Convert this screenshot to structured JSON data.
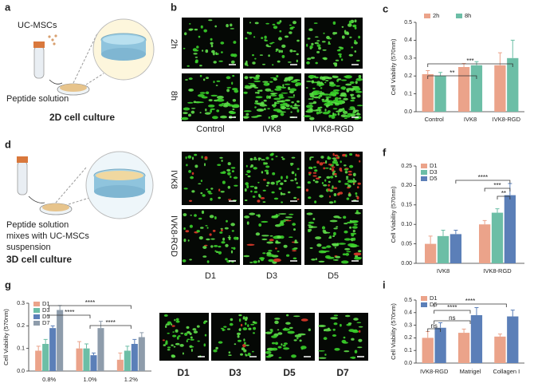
{
  "panel_labels": [
    "a",
    "b",
    "c",
    "d",
    "f",
    "g",
    "i"
  ],
  "panel_a": {
    "cells_label": "UC-MSCs",
    "solution_label": "Peptide solution",
    "title": "2D cell culture"
  },
  "panel_b": {
    "rows": [
      "2h",
      "8h"
    ],
    "columns": [
      "Control",
      "IVK8",
      "IVK8-RGD"
    ]
  },
  "panel_d": {
    "caption_lines": [
      "Peptide solution",
      "mixes with UC-MSCs",
      "suspension"
    ],
    "title": "3D cell culture"
  },
  "images_3d": {
    "rows": [
      "IVK8",
      "IVK8-RGD"
    ],
    "columns": [
      "D1",
      "D3",
      "D5"
    ]
  },
  "images_time": {
    "columns": [
      "D1",
      "D3",
      "D5",
      "D7"
    ]
  },
  "chart_data": [
    {
      "type": "bar",
      "y_label": "Cell Viability (570nm)",
      "categories": [
        "Control",
        "IVK8",
        "IVK8-RGD"
      ],
      "series": [
        {
          "name": "2h",
          "color": "#eba38a",
          "values": [
            0.21,
            0.25,
            0.26
          ],
          "errors": [
            0.02,
            0.02,
            0.07
          ]
        },
        {
          "name": "8h",
          "color": "#6cbea6",
          "values": [
            0.2,
            0.26,
            0.3
          ],
          "errors": [
            0.02,
            0.02,
            0.1
          ]
        }
      ],
      "ylim": [
        0,
        0.5
      ],
      "yticks": [
        {
          "value": 0,
          "label": "0.0"
        },
        0.1,
        0.2,
        0.3,
        0.4,
        0.5
      ],
      "legend": "top",
      "annotations": [
        "***",
        "**"
      ]
    },
    {
      "type": "bar",
      "y_label": "Cell Viability (570nm)",
      "categories": [
        "IVK8",
        "IVK8-RGD"
      ],
      "series": [
        {
          "name": "D1",
          "color": "#eba38a",
          "values": [
            0.05,
            0.1
          ],
          "errors": [
            0.02,
            0.01
          ]
        },
        {
          "name": "D3",
          "color": "#6cbea6",
          "values": [
            0.07,
            0.13
          ],
          "errors": [
            0.015,
            0.01
          ]
        },
        {
          "name": "D5",
          "color": "#5b7fb8",
          "values": [
            0.075,
            0.175
          ],
          "errors": [
            0.01,
            0.03
          ]
        }
      ],
      "ylim": [
        0,
        0.25
      ],
      "yticks": [
        {
          "value": 0,
          "label": "0.00"
        },
        0.05,
        {
          "value": 0.1,
          "label": "0.10"
        },
        0.15,
        {
          "value": 0.2,
          "label": "0.20"
        },
        0.25
      ],
      "legend": "top-left",
      "annotations": [
        "****",
        "***",
        "**"
      ]
    },
    {
      "type": "bar",
      "y_label": "Cell Viability (570nm)",
      "categories": [
        "0.8%",
        "1.0%",
        "1.2%"
      ],
      "series": [
        {
          "name": "D1",
          "color": "#eba38a",
          "values": [
            0.09,
            0.1,
            0.05
          ],
          "errors": [
            0.02,
            0.03,
            0.03
          ]
        },
        {
          "name": "D3",
          "color": "#6cbea6",
          "values": [
            0.12,
            0.1,
            0.09
          ],
          "errors": [
            0.02,
            0.02,
            0.02
          ]
        },
        {
          "name": "D5",
          "color": "#5b7fb8",
          "values": [
            0.19,
            0.07,
            0.12
          ],
          "errors": [
            0.01,
            0.01,
            0.02
          ]
        },
        {
          "name": "D7",
          "color": "#8e9cab",
          "values": [
            0.27,
            0.19,
            0.15
          ],
          "errors": [
            0.02,
            0.03,
            0.02
          ]
        }
      ],
      "ylim": [
        0,
        0.3
      ],
      "yticks": [
        {
          "value": 0,
          "label": "0.0"
        },
        0.1,
        0.2,
        0.3
      ],
      "legend": "top-left",
      "annotations": [
        "****",
        "****",
        "****"
      ]
    },
    {
      "type": "bar",
      "y_label": "Cell Viability (570nm)",
      "categories": [
        "IVK8-RGD",
        "Matrigel",
        "Collagen I"
      ],
      "series": [
        {
          "name": "D1",
          "color": "#eba38a",
          "values": [
            0.2,
            0.24,
            0.21
          ],
          "errors": [
            0.05,
            0.03,
            0.02
          ]
        },
        {
          "name": "D5",
          "color": "#5b7fb8",
          "values": [
            0.28,
            0.38,
            0.37
          ],
          "errors": [
            0.04,
            0.06,
            0.05
          ]
        }
      ],
      "ylim": [
        0,
        0.5
      ],
      "yticks": [
        {
          "value": 0,
          "label": "0.0"
        },
        0.1,
        0.2,
        0.3,
        0.4,
        0.5
      ],
      "legend": "top-left",
      "annotations": [
        "****",
        "****",
        "ns",
        "ns"
      ]
    }
  ]
}
